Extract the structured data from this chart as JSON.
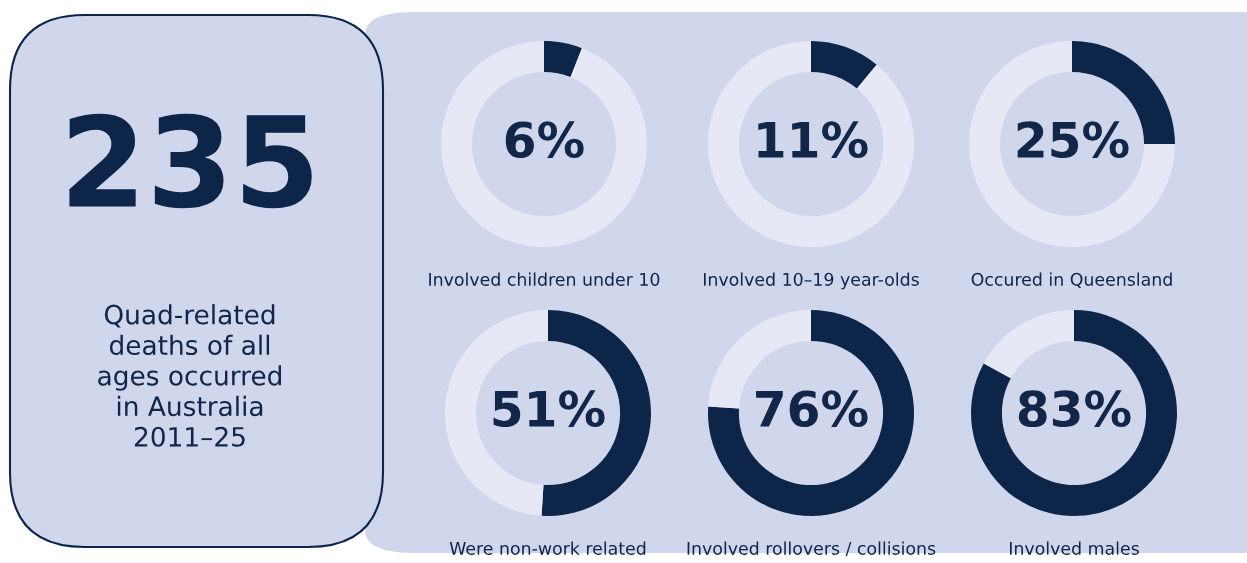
{
  "chart_data": [
    {
      "type": "other",
      "title": "235",
      "subtitle": "Quad-related\ndeaths of all\nages occurred\nin Australia\n2011–25"
    },
    {
      "type": "donut",
      "categories": [
        null,
        null
      ],
      "values": [
        6,
        94
      ],
      "colors": [
        "#0d2548",
        "#e6e8f5"
      ],
      "value_labels": [
        "6%",
        null
      ],
      "xlabel": "Involved children under 10"
    },
    {
      "type": "donut",
      "categories": [
        null,
        null
      ],
      "values": [
        11,
        89
      ],
      "colors": [
        "#0d2548",
        "#e6e8f5"
      ],
      "value_labels": [
        "11%",
        null
      ],
      "xlabel": "Involved 10–19 year-olds"
    },
    {
      "type": "donut",
      "categories": [
        null,
        null
      ],
      "values": [
        25,
        75
      ],
      "colors": [
        "#0d2548",
        "#e6e8f5"
      ],
      "value_labels": [
        "25%",
        null
      ],
      "xlabel": "Occured in Queensland"
    },
    {
      "type": "donut",
      "categories": [
        null,
        null
      ],
      "values": [
        51,
        49
      ],
      "colors": [
        "#0d2548",
        "#e6e8f5"
      ],
      "value_labels": [
        "51%",
        null
      ],
      "xlabel": "Were non-work related"
    },
    {
      "type": "donut",
      "categories": [
        null,
        null
      ],
      "values": [
        76,
        24
      ],
      "colors": [
        "#0d2548",
        "#e6e8f5"
      ],
      "value_labels": [
        "76%",
        null
      ],
      "xlabel": "Involved rollovers / collisions"
    },
    {
      "type": "donut",
      "categories": [
        null,
        null
      ],
      "values": [
        83,
        17
      ],
      "colors": [
        "#0d2548",
        "#e6e8f5"
      ],
      "value_labels": [
        "83%",
        null
      ],
      "xlabel": "Involved males"
    }
  ]
}
